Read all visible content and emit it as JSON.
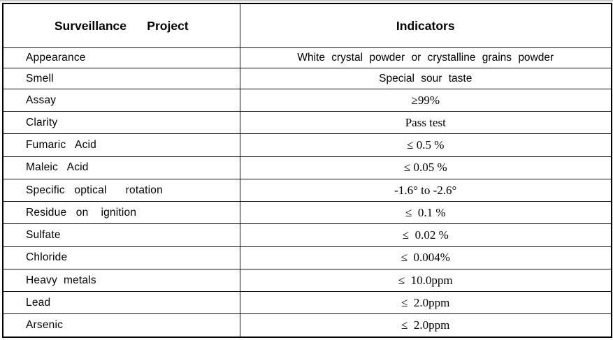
{
  "table": {
    "columns": [
      {
        "label": "Surveillance     Project"
      },
      {
        "label": "Indicators"
      }
    ],
    "rows": [
      {
        "project": "Appearance",
        "indicator": "White crystal powder or crystalline grains powder"
      },
      {
        "project": "Smell",
        "indicator": "Special sour taste"
      },
      {
        "project": "Assay",
        "indicator": "≥99%"
      },
      {
        "project": "Clarity",
        "indicator": "Pass test"
      },
      {
        "project": "Fumaric   Acid",
        "indicator": "≤ 0.5 %"
      },
      {
        "project": "Maleic   Acid",
        "indicator": "≤ 0.05 %"
      },
      {
        "project": "Specific   optical      rotation",
        "indicator": "-1.6° to -2.6°"
      },
      {
        "project": "Residue   on    ignition",
        "indicator": "≤  0.1 %"
      },
      {
        "project": "Sulfate",
        "indicator": "≤  0.02 %"
      },
      {
        "project": "Chloride",
        "indicator": "≤  0.004%"
      },
      {
        "project": "Heavy  metals",
        "indicator": "≤  10.0ppm"
      },
      {
        "project": "Lead",
        "indicator": "≤  2.0ppm"
      },
      {
        "project": "Arsenic",
        "indicator": "≤  2.0ppm"
      }
    ]
  }
}
